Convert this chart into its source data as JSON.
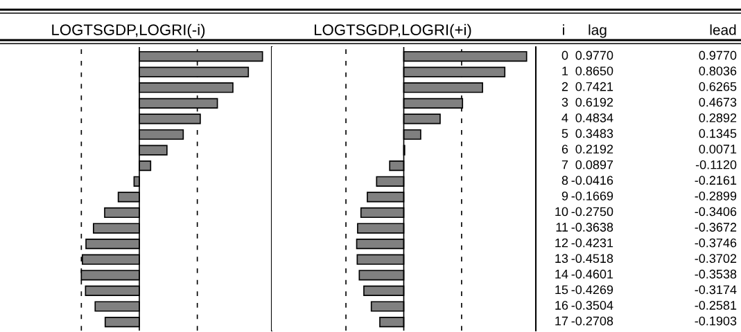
{
  "chart_data": [
    {
      "type": "bar",
      "orientation": "horizontal",
      "title": "LOGTSGDP,LOGRI(-i)",
      "ylabel": "i",
      "categories": [
        "0",
        "1",
        "2",
        "3",
        "4",
        "5",
        "6",
        "7",
        "8",
        "9",
        "10",
        "11",
        "12",
        "13",
        "14",
        "15",
        "16",
        "17"
      ],
      "series": [
        {
          "name": "lag",
          "color": "#808080",
          "values": [
            0.977,
            0.865,
            0.7421,
            0.6192,
            0.4834,
            0.3483,
            0.2192,
            0.0897,
            -0.0416,
            -0.1669,
            -0.275,
            -0.3638,
            -0.4231,
            -0.4518,
            -0.4601,
            -0.4269,
            -0.3504,
            -0.2708
          ],
          "value_labels": [
            "0.9770",
            "0.8650",
            "0.7421",
            "0.6192",
            "0.4834",
            "0.3483",
            "0.2192",
            "0.0897",
            "-0.0416",
            "-0.1669",
            "-0.2750",
            "-0.3638",
            "-0.4231",
            "-0.4518",
            "-0.4601",
            "-0.4269",
            "-0.3504",
            "-0.2708"
          ]
        }
      ],
      "tick_labels": false,
      "ref_lines": [
        {
          "axis": "x",
          "value": -0.46,
          "color": "#000000",
          "line_style": "dashed"
        },
        {
          "axis": "x",
          "value": 0.46,
          "color": "#000000",
          "line_style": "dashed"
        }
      ]
    },
    {
      "type": "bar",
      "orientation": "horizontal",
      "title": "LOGTSGDP,LOGRI(+i)",
      "categories": [
        "0",
        "1",
        "2",
        "3",
        "4",
        "5",
        "6",
        "7",
        "8",
        "9",
        "10",
        "11",
        "12",
        "13",
        "14",
        "15",
        "16",
        "17"
      ],
      "series": [
        {
          "name": "lead",
          "color": "#808080",
          "values": [
            0.977,
            0.8036,
            0.6265,
            0.4673,
            0.2892,
            0.1345,
            0.0071,
            -0.112,
            -0.2161,
            -0.2899,
            -0.3406,
            -0.3672,
            -0.3746,
            -0.3702,
            -0.3538,
            -0.3174,
            -0.2581,
            -0.1903
          ],
          "value_labels": [
            "0.9770",
            "0.8036",
            "0.6265",
            "0.4673",
            "0.2892",
            "0.1345",
            "0.0071",
            "-0.1120",
            "-0.2161",
            "-0.2899",
            "-0.3406",
            "-0.3672",
            "-0.3746",
            "-0.3702",
            "-0.3538",
            "-0.3174",
            "-0.2581",
            "-0.1903"
          ]
        }
      ],
      "tick_labels": false,
      "ref_lines": [
        {
          "axis": "x",
          "value": -0.46,
          "color": "#000000",
          "line_style": "dashed"
        },
        {
          "axis": "x",
          "value": 0.46,
          "color": "#000000",
          "line_style": "dashed"
        }
      ]
    }
  ]
}
